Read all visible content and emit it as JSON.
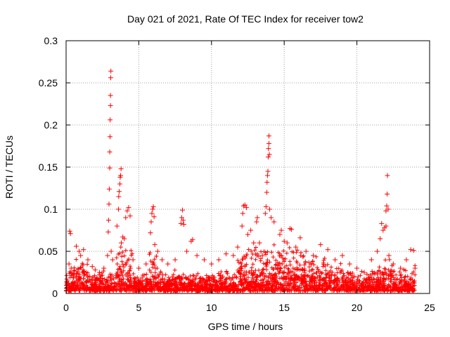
{
  "chart_data": {
    "type": "scatter",
    "title": "Day 021 of 2021, Rate Of TEC Index for receiver tow2",
    "xlabel": "GPS time / hours",
    "ylabel": "ROTI / TECUs",
    "xlim": [
      0,
      25
    ],
    "ylim": [
      0,
      0.3
    ],
    "xticks": [
      0,
      5,
      10,
      15,
      20,
      25
    ],
    "yticks": [
      0,
      0.05,
      0.1,
      0.15,
      0.2,
      0.25,
      0.3
    ],
    "xtick_labels": [
      "0",
      "5",
      "10",
      "15",
      "20",
      "25"
    ],
    "ytick_labels": [
      "0",
      "0.05",
      "0.1",
      "0.15",
      "0.2",
      "0.25",
      "0.3"
    ],
    "grid": true,
    "marker": "+",
    "color": "#ff0000",
    "series": [
      {
        "name": "ROTI",
        "points": [
          [
            0.2,
            0.035
          ],
          [
            0.25,
            0.074
          ],
          [
            0.3,
            0.071
          ],
          [
            0.35,
            0.03
          ],
          [
            0.5,
            0.022
          ],
          [
            0.7,
            0.056
          ],
          [
            0.9,
            0.05
          ],
          [
            1.0,
            0.045
          ],
          [
            1.2,
            0.052
          ],
          [
            1.5,
            0.04
          ],
          [
            1.8,
            0.032
          ],
          [
            2.0,
            0.028
          ],
          [
            2.3,
            0.025
          ],
          [
            2.6,
            0.03
          ],
          [
            2.85,
            0.045
          ],
          [
            2.9,
            0.073
          ],
          [
            2.92,
            0.087
          ],
          [
            2.95,
            0.106
          ],
          [
            2.97,
            0.124
          ],
          [
            3.0,
            0.149
          ],
          [
            3.0,
            0.168
          ],
          [
            3.02,
            0.186
          ],
          [
            3.03,
            0.206
          ],
          [
            3.05,
            0.223
          ],
          [
            3.05,
            0.235
          ],
          [
            3.07,
            0.256
          ],
          [
            3.08,
            0.264
          ],
          [
            3.1,
            0.05
          ],
          [
            3.2,
            0.04
          ],
          [
            3.5,
            0.08
          ],
          [
            3.6,
            0.1
          ],
          [
            3.62,
            0.115
          ],
          [
            3.65,
            0.121
          ],
          [
            3.7,
            0.13
          ],
          [
            3.72,
            0.138
          ],
          [
            3.75,
            0.14
          ],
          [
            3.78,
            0.148
          ],
          [
            3.8,
            0.06
          ],
          [
            3.9,
            0.067
          ],
          [
            4.0,
            0.065
          ],
          [
            4.1,
            0.09
          ],
          [
            4.2,
            0.098
          ],
          [
            4.3,
            0.102
          ],
          [
            4.4,
            0.092
          ],
          [
            4.6,
            0.04
          ],
          [
            5.0,
            0.03
          ],
          [
            5.5,
            0.035
          ],
          [
            5.8,
            0.072
          ],
          [
            5.85,
            0.085
          ],
          [
            5.9,
            0.095
          ],
          [
            5.95,
            0.1
          ],
          [
            6.0,
            0.103
          ],
          [
            6.05,
            0.091
          ],
          [
            6.1,
            0.058
          ],
          [
            6.3,
            0.05
          ],
          [
            6.6,
            0.04
          ],
          [
            7.0,
            0.035
          ],
          [
            7.5,
            0.04
          ],
          [
            7.9,
            0.083
          ],
          [
            7.95,
            0.09
          ],
          [
            8.0,
            0.099
          ],
          [
            8.05,
            0.087
          ],
          [
            8.1,
            0.082
          ],
          [
            8.3,
            0.05
          ],
          [
            8.6,
            0.062
          ],
          [
            8.7,
            0.064
          ],
          [
            9.0,
            0.045
          ],
          [
            9.5,
            0.04
          ],
          [
            10.0,
            0.035
          ],
          [
            10.5,
            0.04
          ],
          [
            11.0,
            0.047
          ],
          [
            11.5,
            0.045
          ],
          [
            11.8,
            0.055
          ],
          [
            12.1,
            0.08
          ],
          [
            12.15,
            0.095
          ],
          [
            12.2,
            0.104
          ],
          [
            12.3,
            0.105
          ],
          [
            12.4,
            0.102
          ],
          [
            12.5,
            0.07
          ],
          [
            12.7,
            0.075
          ],
          [
            12.9,
            0.06
          ],
          [
            13.1,
            0.085
          ],
          [
            13.15,
            0.09
          ],
          [
            13.3,
            0.06
          ],
          [
            13.5,
            0.045
          ],
          [
            13.7,
            0.095
          ],
          [
            13.75,
            0.103
          ],
          [
            13.8,
            0.12
          ],
          [
            13.82,
            0.132
          ],
          [
            13.85,
            0.14
          ],
          [
            13.88,
            0.145
          ],
          [
            13.9,
            0.162
          ],
          [
            13.92,
            0.172
          ],
          [
            13.95,
            0.178
          ],
          [
            13.95,
            0.187
          ],
          [
            13.98,
            0.165
          ],
          [
            14.0,
            0.1
          ],
          [
            14.1,
            0.09
          ],
          [
            14.3,
            0.085
          ],
          [
            14.7,
            0.07
          ],
          [
            14.8,
            0.075
          ],
          [
            15.0,
            0.062
          ],
          [
            15.2,
            0.06
          ],
          [
            15.4,
            0.077
          ],
          [
            15.5,
            0.076
          ],
          [
            15.8,
            0.055
          ],
          [
            16.1,
            0.066
          ],
          [
            16.5,
            0.05
          ],
          [
            17.0,
            0.045
          ],
          [
            17.5,
            0.058
          ],
          [
            18.0,
            0.052
          ],
          [
            18.5,
            0.04
          ],
          [
            19.0,
            0.045
          ],
          [
            19.5,
            0.035
          ],
          [
            20.0,
            0.03
          ],
          [
            20.5,
            0.025
          ],
          [
            21.0,
            0.04
          ],
          [
            21.4,
            0.05
          ],
          [
            21.6,
            0.065
          ],
          [
            21.7,
            0.083
          ],
          [
            21.8,
            0.075
          ],
          [
            21.9,
            0.078
          ],
          [
            22.0,
            0.08
          ],
          [
            22.0,
            0.098
          ],
          [
            22.05,
            0.104
          ],
          [
            22.08,
            0.118
          ],
          [
            22.1,
            0.14
          ],
          [
            22.15,
            0.1
          ],
          [
            22.2,
            0.045
          ],
          [
            22.5,
            0.035
          ],
          [
            23.0,
            0.03
          ],
          [
            23.4,
            0.04
          ],
          [
            23.7,
            0.052
          ],
          [
            23.9,
            0.051
          ],
          [
            24.0,
            0.03
          ]
        ]
      }
    ]
  }
}
